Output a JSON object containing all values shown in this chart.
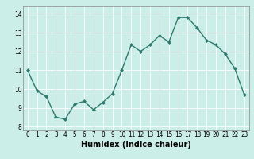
{
  "x": [
    0,
    1,
    2,
    3,
    4,
    5,
    6,
    7,
    8,
    9,
    10,
    11,
    12,
    13,
    14,
    15,
    16,
    17,
    18,
    19,
    20,
    21,
    22,
    23
  ],
  "y": [
    11.0,
    9.9,
    9.6,
    8.5,
    8.4,
    9.2,
    9.35,
    8.9,
    9.3,
    9.75,
    11.0,
    12.35,
    12.0,
    12.35,
    12.85,
    12.5,
    13.8,
    13.8,
    13.25,
    12.6,
    12.35,
    11.85,
    11.1,
    9.7
  ],
  "line_color": "#2d7a6e",
  "marker": "D",
  "marker_size": 2,
  "linewidth": 1.0,
  "xlabel": "Humidex (Indice chaleur)",
  "xlabel_fontsize": 7,
  "ylim": [
    7.8,
    14.4
  ],
  "xlim": [
    -0.5,
    23.5
  ],
  "yticks": [
    8,
    9,
    10,
    11,
    12,
    13,
    14
  ],
  "xticks": [
    0,
    1,
    2,
    3,
    4,
    5,
    6,
    7,
    8,
    9,
    10,
    11,
    12,
    13,
    14,
    15,
    16,
    17,
    18,
    19,
    20,
    21,
    22,
    23
  ],
  "grid_color": "#ffffff",
  "grid_linewidth": 0.6,
  "bg_color": "#cceee8",
  "tick_fontsize": 5.5,
  "spine_color": "#888888"
}
